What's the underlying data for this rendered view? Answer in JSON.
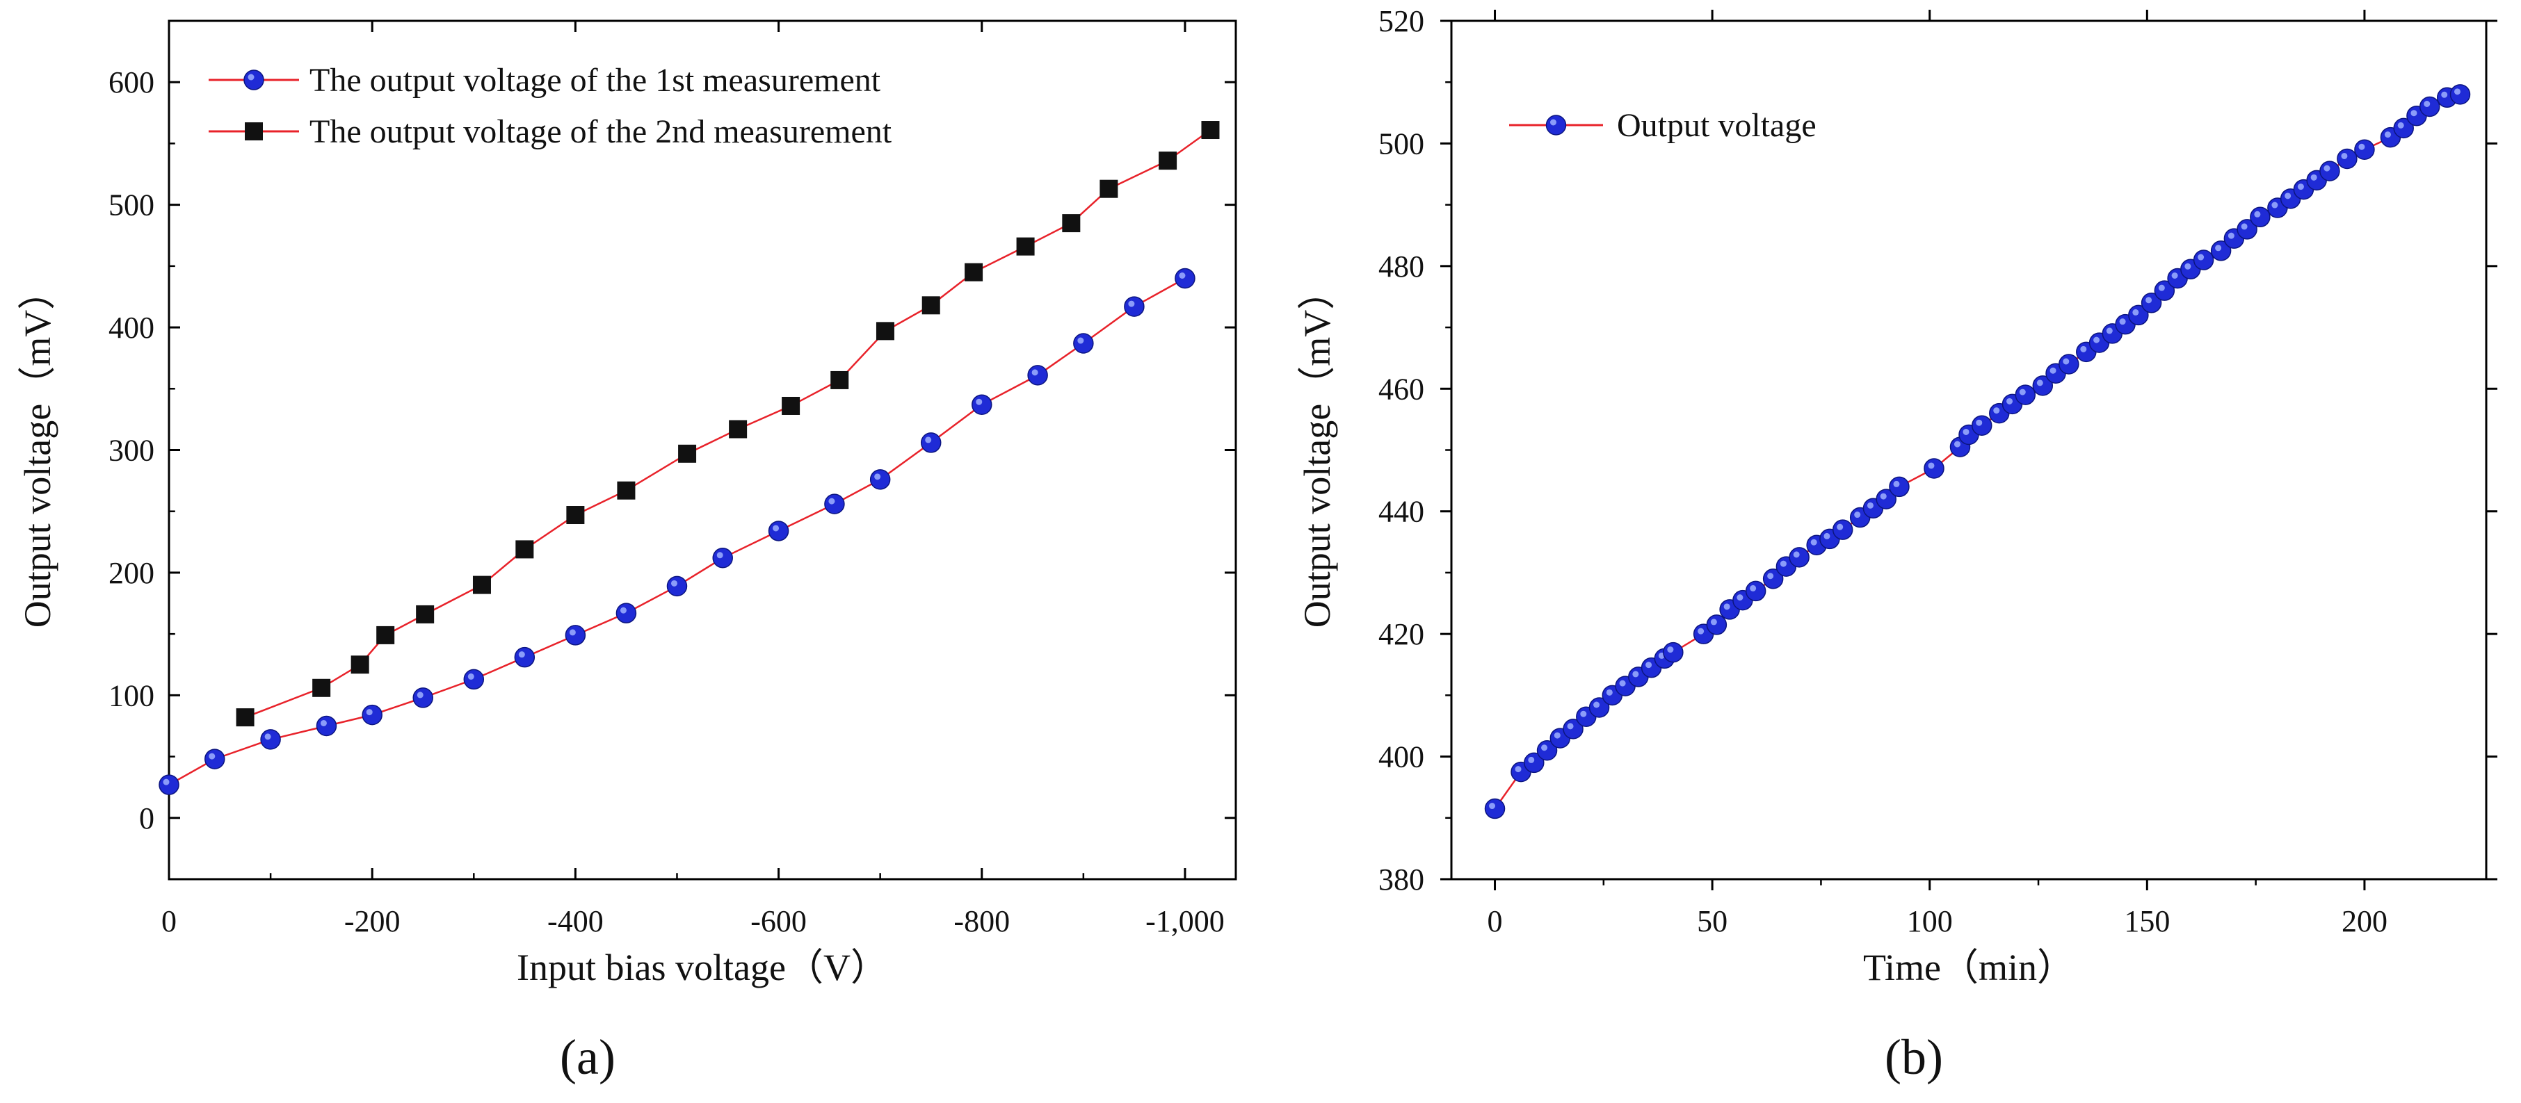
{
  "chart_data": [
    {
      "type": "line",
      "panel_label": "a",
      "xlabel": "Input bias voltage（V）",
      "ylabel": "Output voltage（mV）",
      "xlim": [
        0,
        -1050
      ],
      "ylim": [
        -50,
        650
      ],
      "x_ticks": [
        0,
        -200,
        -400,
        -600,
        -800,
        -1000
      ],
      "x_tick_labels": [
        "0",
        "-200",
        "-400",
        "-600",
        "-800",
        "-1,000"
      ],
      "y_ticks": [
        0,
        100,
        200,
        300,
        400,
        500,
        600
      ],
      "y_tick_labels": [
        "0",
        "100",
        "200",
        "300",
        "400",
        "500",
        "600"
      ],
      "legend_position": "top-left",
      "series": [
        {
          "name": "The output voltage of the 1st measurement",
          "marker": "circle",
          "marker_color": "#1f2bd6",
          "line_color": "#e8222a",
          "x": [
            0,
            -45,
            -100,
            -155,
            -200,
            -250,
            -300,
            -350,
            -400,
            -450,
            -500,
            -545,
            -600,
            -655,
            -700,
            -750,
            -800,
            -855,
            -900,
            -950,
            -1000
          ],
          "y": [
            27,
            48,
            64,
            75,
            84,
            98,
            113,
            131,
            149,
            167,
            189,
            212,
            234,
            256,
            276,
            306,
            337,
            361,
            387,
            417,
            440
          ]
        },
        {
          "name": "The output voltage of the 2nd measurement",
          "marker": "square",
          "marker_color": "#111111",
          "line_color": "#e8222a",
          "x": [
            -75,
            -150,
            -188,
            -213,
            -252,
            -308,
            -350,
            -400,
            -450,
            -510,
            -560,
            -612,
            -660,
            -705,
            -750,
            -792,
            -843,
            -888,
            -925,
            -983,
            -1025
          ],
          "y": [
            82,
            106,
            125,
            149,
            166,
            190,
            219,
            247,
            267,
            297,
            317,
            336,
            357,
            397,
            418,
            445,
            466,
            485,
            513,
            536,
            561
          ]
        }
      ]
    },
    {
      "type": "line",
      "panel_label": "b",
      "xlabel": "Time（min）",
      "ylabel": "Output voltage（mV）",
      "xlim": [
        -10,
        228
      ],
      "ylim": [
        380,
        520
      ],
      "x_ticks": [
        0,
        50,
        100,
        150,
        200
      ],
      "x_tick_labels": [
        "0",
        "50",
        "100",
        "150",
        "200"
      ],
      "y_ticks": [
        380,
        400,
        420,
        440,
        460,
        480,
        500,
        520
      ],
      "y_tick_labels": [
        "380",
        "400",
        "420",
        "440",
        "460",
        "480",
        "500",
        "520"
      ],
      "legend_position": "top-left",
      "series": [
        {
          "name": "Output voltage",
          "marker": "circle",
          "marker_color": "#1f2bd6",
          "line_color": "#e8222a",
          "x": [
            0,
            6,
            9,
            12,
            15,
            18,
            21,
            24,
            27,
            30,
            33,
            36,
            39,
            41,
            48,
            51,
            54,
            57,
            60,
            64,
            67,
            70,
            74,
            77,
            80,
            84,
            87,
            90,
            93,
            101,
            107,
            109,
            112,
            116,
            119,
            122,
            126,
            129,
            132,
            136,
            139,
            142,
            145,
            148,
            151,
            154,
            157,
            160,
            163,
            167,
            170,
            173,
            176,
            180,
            183,
            186,
            189,
            192,
            196,
            200,
            206,
            209,
            212,
            215,
            219,
            222
          ],
          "y": [
            391.5,
            397.5,
            399.0,
            401.0,
            403.0,
            404.5,
            406.5,
            408.0,
            410.0,
            411.5,
            413.0,
            414.5,
            416.0,
            417.0,
            420.0,
            421.5,
            424.0,
            425.5,
            427.0,
            429.0,
            431.0,
            432.5,
            434.5,
            435.5,
            437.0,
            439.0,
            440.5,
            442.0,
            444.0,
            447.0,
            450.5,
            452.5,
            454.0,
            456.0,
            457.5,
            459.0,
            460.5,
            462.5,
            464.0,
            466.0,
            467.5,
            469.0,
            470.5,
            472.0,
            474.0,
            476.0,
            478.0,
            479.5,
            481.0,
            482.5,
            484.5,
            486.0,
            488.0,
            489.5,
            491.0,
            492.5,
            494.0,
            495.5,
            497.5,
            499.0,
            501.0,
            502.5,
            504.5,
            506.0,
            507.5,
            508.0
          ]
        }
      ]
    }
  ],
  "captions": {
    "a": "(a)",
    "b": "(b)"
  }
}
